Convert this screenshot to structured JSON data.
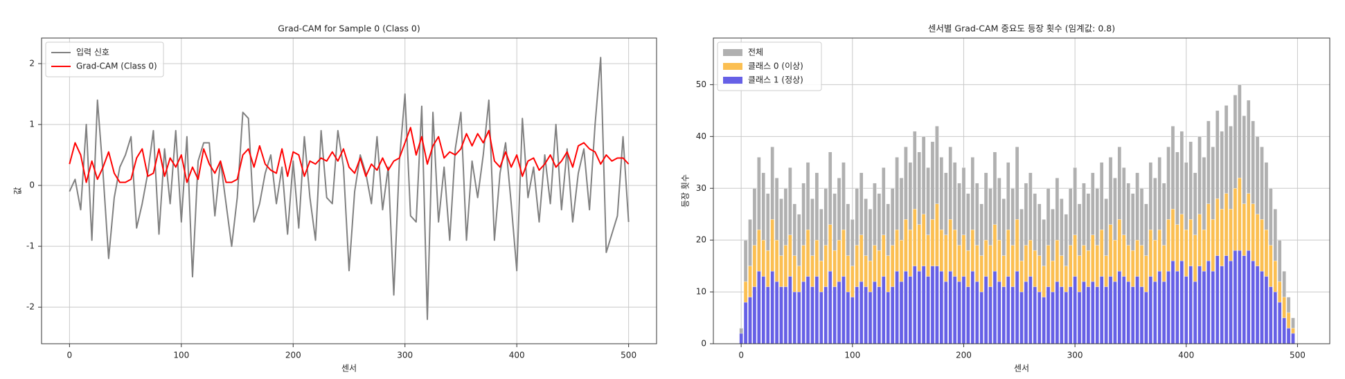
{
  "chart_data": [
    {
      "type": "line",
      "title": "Grad-CAM for Sample 0 (Class 0)",
      "xlabel": "센서",
      "ylabel": "값",
      "x": [
        0,
        5,
        10,
        15,
        20,
        25,
        30,
        35,
        40,
        45,
        50,
        55,
        60,
        65,
        70,
        75,
        80,
        85,
        90,
        95,
        100,
        105,
        110,
        115,
        120,
        125,
        130,
        135,
        140,
        145,
        150,
        155,
        160,
        165,
        170,
        175,
        180,
        185,
        190,
        195,
        200,
        205,
        210,
        215,
        220,
        225,
        230,
        235,
        240,
        245,
        250,
        255,
        260,
        265,
        270,
        275,
        280,
        285,
        290,
        295,
        300,
        305,
        310,
        315,
        320,
        325,
        330,
        335,
        340,
        345,
        350,
        355,
        360,
        365,
        370,
        375,
        380,
        385,
        390,
        395,
        400,
        405,
        410,
        415,
        420,
        425,
        430,
        435,
        440,
        445,
        450,
        455,
        460,
        465,
        470,
        475,
        480,
        485,
        490,
        495,
        500
      ],
      "series": [
        {
          "name": "입력 신호",
          "color": "#808080",
          "values": [
            -0.1,
            0.1,
            -0.4,
            1.0,
            -0.9,
            1.4,
            0.2,
            -1.2,
            -0.2,
            0.3,
            0.5,
            0.8,
            -0.7,
            -0.3,
            0.2,
            0.9,
            -0.8,
            0.6,
            -0.3,
            0.9,
            -0.6,
            0.8,
            -1.5,
            0.4,
            0.7,
            0.7,
            -0.5,
            0.4,
            -0.3,
            -1.0,
            -0.2,
            1.2,
            1.1,
            -0.6,
            -0.3,
            0.2,
            0.5,
            -0.3,
            0.3,
            -0.8,
            0.4,
            -0.7,
            0.8,
            -0.2,
            -0.9,
            0.9,
            -0.2,
            -0.3,
            0.9,
            0.3,
            -1.4,
            -0.1,
            0.5,
            0.2,
            -0.3,
            0.8,
            -0.4,
            0.3,
            -1.8,
            0.4,
            1.5,
            -0.5,
            -0.6,
            1.3,
            -2.2,
            1.2,
            -0.6,
            0.3,
            -0.9,
            0.6,
            1.2,
            -0.9,
            0.4,
            -0.2,
            0.5,
            1.4,
            -0.9,
            0.2,
            0.7,
            -0.3,
            -1.4,
            1.1,
            -0.2,
            0.3,
            -0.6,
            0.5,
            -0.3,
            1.0,
            -0.4,
            0.6,
            -0.6,
            0.2,
            0.6,
            -0.4,
            1.0,
            2.1,
            -1.1,
            -0.8,
            -0.5,
            0.8,
            -0.6
          ]
        },
        {
          "name": "Grad-CAM (Class 0)",
          "color": "#ff0000",
          "values": [
            0.35,
            0.7,
            0.5,
            0.05,
            0.4,
            0.1,
            0.3,
            0.55,
            0.2,
            0.05,
            0.05,
            0.1,
            0.45,
            0.6,
            0.15,
            0.2,
            0.6,
            0.15,
            0.45,
            0.3,
            0.5,
            0.05,
            0.3,
            0.1,
            0.6,
            0.35,
            0.2,
            0.4,
            0.05,
            0.05,
            0.1,
            0.5,
            0.6,
            0.3,
            0.65,
            0.35,
            0.25,
            0.2,
            0.6,
            0.15,
            0.55,
            0.5,
            0.15,
            0.4,
            0.35,
            0.45,
            0.4,
            0.55,
            0.4,
            0.6,
            0.3,
            0.2,
            0.45,
            0.15,
            0.35,
            0.25,
            0.45,
            0.25,
            0.4,
            0.45,
            0.7,
            0.95,
            0.5,
            0.8,
            0.35,
            0.65,
            0.8,
            0.45,
            0.55,
            0.5,
            0.6,
            0.85,
            0.65,
            0.85,
            0.7,
            0.9,
            0.4,
            0.3,
            0.55,
            0.3,
            0.5,
            0.15,
            0.4,
            0.45,
            0.25,
            0.35,
            0.5,
            0.3,
            0.4,
            0.55,
            0.3,
            0.65,
            0.7,
            0.6,
            0.55,
            0.35,
            0.5,
            0.4,
            0.45,
            0.45,
            0.35
          ]
        }
      ],
      "xlim": [
        -25,
        525
      ],
      "ylim": [
        -2.6,
        2.42
      ],
      "xticks": [
        0,
        100,
        200,
        300,
        400,
        500
      ],
      "yticks": [
        -2,
        -1,
        0,
        1,
        2
      ],
      "grid": true,
      "legend": "upper left"
    },
    {
      "type": "bar",
      "title": "센서별 Grad-CAM 중요도 등장 횟수 (임계값: 0.8)",
      "xlabel": "센서",
      "ylabel": "등장 횟수",
      "x": [
        0,
        4,
        8,
        12,
        16,
        20,
        24,
        28,
        32,
        36,
        40,
        44,
        48,
        52,
        56,
        60,
        64,
        68,
        72,
        76,
        80,
        84,
        88,
        92,
        96,
        100,
        104,
        108,
        112,
        116,
        120,
        124,
        128,
        132,
        136,
        140,
        144,
        148,
        152,
        156,
        160,
        164,
        168,
        172,
        176,
        180,
        184,
        188,
        192,
        196,
        200,
        204,
        208,
        212,
        216,
        220,
        224,
        228,
        232,
        236,
        240,
        244,
        248,
        252,
        256,
        260,
        264,
        268,
        272,
        276,
        280,
        284,
        288,
        292,
        296,
        300,
        304,
        308,
        312,
        316,
        320,
        324,
        328,
        332,
        336,
        340,
        344,
        348,
        352,
        356,
        360,
        364,
        368,
        372,
        376,
        380,
        384,
        388,
        392,
        396,
        400,
        404,
        408,
        412,
        416,
        420,
        424,
        428,
        432,
        436,
        440,
        444,
        448,
        452,
        456,
        460,
        464,
        468,
        472,
        476,
        480,
        484,
        488,
        492,
        496
      ],
      "series": [
        {
          "name": "전체",
          "color": "#b0b0b0",
          "values": [
            3,
            20,
            24,
            30,
            36,
            33,
            29,
            38,
            32,
            28,
            30,
            34,
            27,
            25,
            31,
            35,
            28,
            33,
            26,
            30,
            37,
            29,
            32,
            35,
            27,
            24,
            30,
            33,
            28,
            26,
            31,
            29,
            34,
            27,
            30,
            36,
            32,
            38,
            35,
            41,
            37,
            40,
            34,
            39,
            42,
            36,
            33,
            38,
            35,
            31,
            34,
            29,
            36,
            31,
            27,
            33,
            30,
            37,
            32,
            28,
            35,
            30,
            38,
            26,
            31,
            33,
            29,
            27,
            24,
            30,
            26,
            32,
            28,
            25,
            30,
            34,
            27,
            31,
            29,
            33,
            30,
            35,
            28,
            36,
            32,
            38,
            34,
            31,
            29,
            33,
            30,
            27,
            35,
            32,
            36,
            31,
            38,
            42,
            37,
            41,
            35,
            39,
            33,
            40,
            36,
            43,
            38,
            45,
            41,
            46,
            42,
            48,
            50,
            44,
            47,
            43,
            40,
            38,
            35,
            30,
            26,
            20,
            14,
            9,
            5
          ]
        },
        {
          "name": "클래스 0 (이상)",
          "color": "#fbbf52",
          "values": [
            1,
            12,
            15,
            19,
            22,
            20,
            18,
            24,
            20,
            17,
            19,
            21,
            17,
            15,
            19,
            22,
            17,
            20,
            16,
            19,
            23,
            18,
            20,
            22,
            17,
            15,
            19,
            21,
            17,
            16,
            19,
            18,
            21,
            17,
            19,
            22,
            20,
            24,
            22,
            26,
            23,
            25,
            21,
            24,
            27,
            22,
            21,
            24,
            22,
            19,
            21,
            18,
            22,
            19,
            17,
            20,
            19,
            23,
            20,
            17,
            22,
            19,
            24,
            16,
            19,
            20,
            18,
            17,
            15,
            19,
            16,
            20,
            17,
            15,
            19,
            21,
            17,
            19,
            18,
            21,
            19,
            22,
            17,
            23,
            20,
            24,
            21,
            19,
            18,
            20,
            19,
            17,
            22,
            20,
            22,
            19,
            24,
            26,
            23,
            25,
            22,
            24,
            21,
            25,
            22,
            27,
            24,
            28,
            26,
            29,
            26,
            30,
            32,
            27,
            29,
            27,
            25,
            24,
            22,
            19,
            16,
            12,
            9,
            6,
            3
          ]
        },
        {
          "name": "클래스 1 (정상)",
          "color": "#6660e6",
          "values": [
            2,
            8,
            9,
            11,
            14,
            13,
            11,
            14,
            12,
            11,
            11,
            13,
            10,
            10,
            12,
            13,
            11,
            13,
            10,
            11,
            14,
            11,
            12,
            13,
            10,
            9,
            11,
            12,
            11,
            10,
            12,
            11,
            13,
            10,
            11,
            14,
            12,
            14,
            13,
            15,
            14,
            15,
            13,
            15,
            15,
            14,
            12,
            14,
            13,
            12,
            13,
            11,
            14,
            12,
            10,
            13,
            11,
            14,
            12,
            11,
            13,
            11,
            14,
            10,
            12,
            13,
            11,
            10,
            9,
            11,
            10,
            12,
            11,
            10,
            11,
            13,
            10,
            12,
            11,
            12,
            11,
            13,
            11,
            13,
            12,
            14,
            13,
            12,
            11,
            13,
            11,
            10,
            13,
            12,
            14,
            12,
            14,
            16,
            14,
            16,
            13,
            15,
            12,
            15,
            14,
            16,
            14,
            17,
            15,
            17,
            16,
            18,
            18,
            17,
            18,
            16,
            15,
            14,
            13,
            11,
            10,
            8,
            5,
            3,
            2
          ]
        }
      ],
      "xlim": [
        -25,
        529
      ],
      "ylim": [
        0,
        59
      ],
      "xticks": [
        0,
        100,
        200,
        300,
        400,
        500
      ],
      "yticks": [
        0,
        10,
        20,
        30,
        40,
        50
      ],
      "grid": true,
      "legend": "upper left"
    }
  ]
}
